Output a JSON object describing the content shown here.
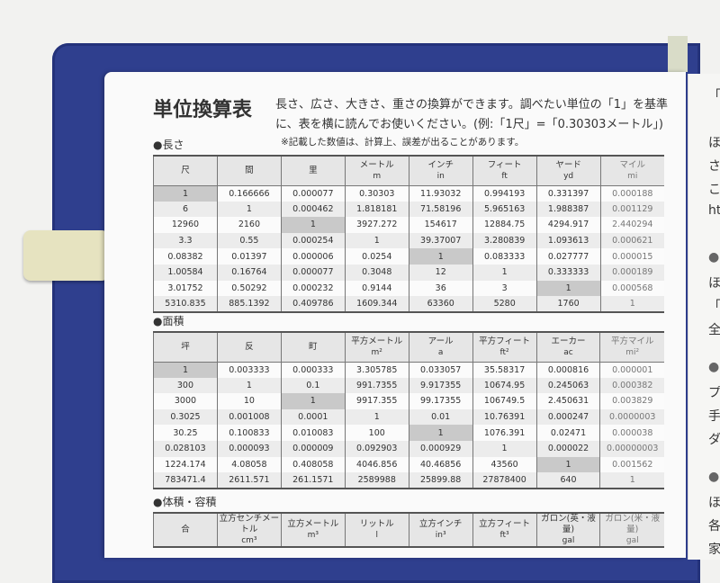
{
  "title": "単位換算表",
  "intro": "長さ、広さ、大きさ、重さの換算ができます。調べたい単位の「1」を基準に、表を横に読んでお使いください。(例:「1尺」=「0.30303メートル」)",
  "note": "※記載した数値は、計算上、誤差が出ることがあります。",
  "sections": [
    {
      "heading": "●長さ",
      "headers": [
        [
          "尺",
          ""
        ],
        [
          "間",
          ""
        ],
        [
          "里",
          ""
        ],
        [
          "メートル",
          "m"
        ],
        [
          "インチ",
          "in"
        ],
        [
          "フィート",
          "ft"
        ],
        [
          "ヤード",
          "yd"
        ],
        [
          "マイル",
          "mi"
        ]
      ],
      "rows": [
        [
          "1",
          "0.166666",
          "0.000077",
          "0.30303",
          "11.93032",
          "0.994193",
          "0.331397",
          "0.000188"
        ],
        [
          "6",
          "1",
          "0.000462",
          "1.818181",
          "71.58196",
          "5.965163",
          "1.988387",
          "0.001129"
        ],
        [
          "12960",
          "2160",
          "1",
          "3927.272",
          "154617",
          "12884.75",
          "4294.917",
          "2.440294"
        ],
        [
          "3.3",
          "0.55",
          "0.000254",
          "1",
          "39.37007",
          "3.280839",
          "1.093613",
          "0.000621"
        ],
        [
          "0.08382",
          "0.01397",
          "0.000006",
          "0.0254",
          "1",
          "0.083333",
          "0.027777",
          "0.000015"
        ],
        [
          "1.00584",
          "0.16764",
          "0.000077",
          "0.3048",
          "12",
          "1",
          "0.333333",
          "0.000189"
        ],
        [
          "3.01752",
          "0.50292",
          "0.000232",
          "0.9144",
          "36",
          "3",
          "1",
          "0.000568"
        ],
        [
          "5310.835",
          "885.1392",
          "0.409786",
          "1609.344",
          "63360",
          "5280",
          "1760",
          "1"
        ]
      ]
    },
    {
      "heading": "●面積",
      "headers": [
        [
          "坪",
          ""
        ],
        [
          "反",
          ""
        ],
        [
          "町",
          ""
        ],
        [
          "平方メートル",
          "m²"
        ],
        [
          "アール",
          "a"
        ],
        [
          "平方フィート",
          "ft²"
        ],
        [
          "エーカー",
          "ac"
        ],
        [
          "平方マイル",
          "mi²"
        ]
      ],
      "rows": [
        [
          "1",
          "0.003333",
          "0.000333",
          "3.305785",
          "0.033057",
          "35.58317",
          "0.000816",
          "0.000001"
        ],
        [
          "300",
          "1",
          "0.1",
          "991.7355",
          "9.917355",
          "10674.95",
          "0.245063",
          "0.000382"
        ],
        [
          "3000",
          "10",
          "1",
          "9917.355",
          "99.17355",
          "106749.5",
          "2.450631",
          "0.003829"
        ],
        [
          "0.3025",
          "0.001008",
          "0.0001",
          "1",
          "0.01",
          "10.76391",
          "0.000247",
          "0.0000003"
        ],
        [
          "30.25",
          "0.100833",
          "0.010083",
          "100",
          "1",
          "1076.391",
          "0.02471",
          "0.000038"
        ],
        [
          "0.028103",
          "0.000093",
          "0.000009",
          "0.092903",
          "0.000929",
          "1",
          "0.000022",
          "0.00000003"
        ],
        [
          "1224.174",
          "4.08058",
          "0.408058",
          "4046.856",
          "40.46856",
          "43560",
          "1",
          "0.001562"
        ],
        [
          "783471.4",
          "2611.571",
          "261.1571",
          "2589988",
          "25899.88",
          "27878400",
          "640",
          "1"
        ]
      ]
    },
    {
      "heading": "●体積・容積",
      "headers": [
        [
          "合",
          ""
        ],
        [
          "立方センチメートル",
          "cm³"
        ],
        [
          "立方メートル",
          "m³"
        ],
        [
          "リットル",
          "l"
        ],
        [
          "立方インチ",
          "in³"
        ],
        [
          "立方フィート",
          "ft³"
        ],
        [
          "ガロン(英・液量)",
          "gal"
        ],
        [
          "ガロン(米・液量)",
          "gal"
        ]
      ],
      "rows": []
    }
  ],
  "right_page": [
    "「",
    "ほ",
    "さ",
    "こ",
    "ht",
    "●",
    "ほ",
    "「E",
    "全",
    "●",
    "プ",
    "手",
    "ダ",
    "●",
    "ほ",
    "各",
    "家"
  ]
}
